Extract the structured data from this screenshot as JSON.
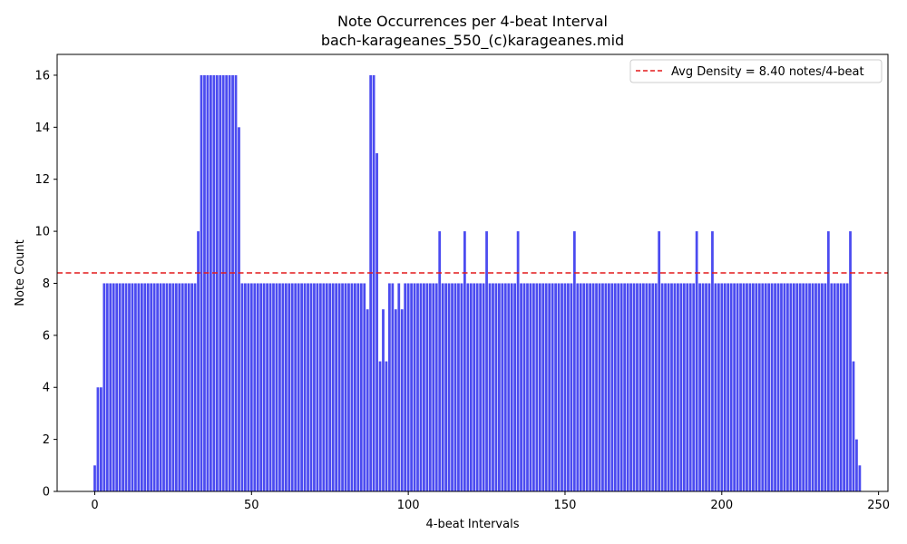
{
  "chart_data": {
    "type": "bar",
    "title": "Note Occurrences per 4-beat Interval",
    "subtitle": "bach-karageanes_550_(c)karageanes.mid",
    "xlabel": "4-beat Intervals",
    "ylabel": "Note Count",
    "xlim": [
      -12,
      253
    ],
    "ylim": [
      0,
      16.8
    ],
    "x_ticks": [
      0,
      50,
      100,
      150,
      200,
      250
    ],
    "y_ticks": [
      0,
      2,
      4,
      6,
      8,
      10,
      12,
      14,
      16
    ],
    "bar_color": "#4b4bf0",
    "values": [
      1,
      4,
      4,
      8,
      8,
      8,
      8,
      8,
      8,
      8,
      8,
      8,
      8,
      8,
      8,
      8,
      8,
      8,
      8,
      8,
      8,
      8,
      8,
      8,
      8,
      8,
      8,
      8,
      8,
      8,
      8,
      8,
      8,
      10,
      16,
      16,
      16,
      16,
      16,
      16,
      16,
      16,
      16,
      16,
      16,
      16,
      14,
      8,
      8,
      8,
      8,
      8,
      8,
      8,
      8,
      8,
      8,
      8,
      8,
      8,
      8,
      8,
      8,
      8,
      8,
      8,
      8,
      8,
      8,
      8,
      8,
      8,
      8,
      8,
      8,
      8,
      8,
      8,
      8,
      8,
      8,
      8,
      8,
      8,
      8,
      8,
      8,
      7,
      16,
      16,
      13,
      5,
      7,
      5,
      8,
      8,
      7,
      8,
      7,
      8,
      8,
      8,
      8,
      8,
      8,
      8,
      8,
      8,
      8,
      8,
      10,
      8,
      8,
      8,
      8,
      8,
      8,
      8,
      10,
      8,
      8,
      8,
      8,
      8,
      8,
      10,
      8,
      8,
      8,
      8,
      8,
      8,
      8,
      8,
      8,
      10,
      8,
      8,
      8,
      8,
      8,
      8,
      8,
      8,
      8,
      8,
      8,
      8,
      8,
      8,
      8,
      8,
      8,
      10,
      8,
      8,
      8,
      8,
      8,
      8,
      8,
      8,
      8,
      8,
      8,
      8,
      8,
      8,
      8,
      8,
      8,
      8,
      8,
      8,
      8,
      8,
      8,
      8,
      8,
      8,
      10,
      8,
      8,
      8,
      8,
      8,
      8,
      8,
      8,
      8,
      8,
      8,
      10,
      8,
      8,
      8,
      8,
      10,
      8,
      8,
      8,
      8,
      8,
      8,
      8,
      8,
      8,
      8,
      8,
      8,
      8,
      8,
      8,
      8,
      8,
      8,
      8,
      8,
      8,
      8,
      8,
      8,
      8,
      8,
      8,
      8,
      8,
      8,
      8,
      8,
      8,
      8,
      8,
      8,
      10,
      8,
      8,
      8,
      8,
      8,
      8,
      10,
      5,
      2,
      1
    ],
    "reference_line": {
      "value": 8.4,
      "label": "Avg Density = 8.40 notes/4-beat",
      "color": "#e31a1c",
      "style": "dashed"
    },
    "legend_placement": "top-right",
    "grid": false
  }
}
